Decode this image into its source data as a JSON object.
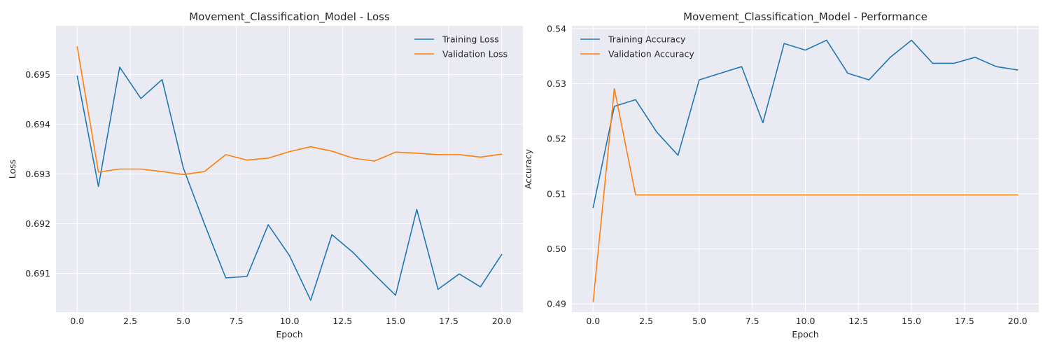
{
  "chart_data": [
    {
      "type": "line",
      "title": "Movement_Classification_Model - Loss",
      "xlabel": "Epoch",
      "ylabel": "Loss",
      "xlim": [
        -1,
        21
      ],
      "ylim": [
        0.69022,
        0.69598
      ],
      "xticks": [
        0,
        2.5,
        5,
        7.5,
        10,
        12.5,
        15,
        17.5,
        20
      ],
      "xtick_labels": [
        "0.0",
        "2.5",
        "5.0",
        "7.5",
        "10.0",
        "12.5",
        "15.0",
        "17.5",
        "20.0"
      ],
      "yticks": [
        0.691,
        0.692,
        0.693,
        0.694,
        0.695
      ],
      "ytick_labels": [
        "0.691",
        "0.692",
        "0.693",
        "0.694",
        "0.695"
      ],
      "grid": true,
      "legend": "upper right",
      "x": [
        0,
        1,
        2,
        3,
        4,
        5,
        6,
        7,
        8,
        9,
        10,
        11,
        12,
        13,
        14,
        15,
        16,
        17,
        18,
        19,
        20
      ],
      "series": [
        {
          "name": "Training Loss",
          "color": "#1f77b4",
          "values": [
            0.69497,
            0.69275,
            0.69515,
            0.69452,
            0.6949,
            0.69312,
            0.69199,
            0.69091,
            0.69094,
            0.69198,
            0.69136,
            0.69046,
            0.69178,
            0.69142,
            0.69098,
            0.69056,
            0.69229,
            0.69068,
            0.69099,
            0.69073,
            0.69138
          ]
        },
        {
          "name": "Validation Loss",
          "color": "#ff7f0e",
          "values": [
            0.69556,
            0.69304,
            0.6931,
            0.6931,
            0.69305,
            0.69299,
            0.69305,
            0.69339,
            0.69328,
            0.69332,
            0.69345,
            0.69355,
            0.69346,
            0.69332,
            0.69326,
            0.69344,
            0.69342,
            0.69339,
            0.69339,
            0.69334,
            0.6934
          ]
        }
      ]
    },
    {
      "type": "line",
      "title": "Movement_Classification_Model - Performance",
      "xlabel": "Epoch",
      "ylabel": "Accuracy",
      "xlim": [
        -1,
        21
      ],
      "ylim": [
        0.4885,
        0.5405
      ],
      "xticks": [
        0,
        2.5,
        5,
        7.5,
        10,
        12.5,
        15,
        17.5,
        20
      ],
      "xtick_labels": [
        "0.0",
        "2.5",
        "5.0",
        "7.5",
        "10.0",
        "12.5",
        "15.0",
        "17.5",
        "20.0"
      ],
      "yticks": [
        0.49,
        0.5,
        0.51,
        0.52,
        0.53,
        0.54
      ],
      "ytick_labels": [
        "0.49",
        "0.50",
        "0.51",
        "0.52",
        "0.53",
        "0.54"
      ],
      "grid": true,
      "legend": "upper left",
      "x": [
        0,
        1,
        2,
        3,
        4,
        5,
        6,
        7,
        8,
        9,
        10,
        11,
        12,
        13,
        14,
        15,
        16,
        17,
        18,
        19,
        20
      ],
      "series": [
        {
          "name": "Training Accuracy",
          "color": "#1f77b4",
          "values": [
            0.5075,
            0.5259,
            0.5271,
            0.5212,
            0.517,
            0.5307,
            0.5319,
            0.5331,
            0.5229,
            0.5373,
            0.5361,
            0.5379,
            0.5319,
            0.5307,
            0.5348,
            0.5379,
            0.5337,
            0.5337,
            0.5348,
            0.5331,
            0.5325
          ]
        },
        {
          "name": "Validation Accuracy",
          "color": "#ff7f0e",
          "values": [
            0.4904,
            0.5291,
            0.5098,
            0.5098,
            0.5098,
            0.5098,
            0.5098,
            0.5098,
            0.5098,
            0.5098,
            0.5098,
            0.5098,
            0.5098,
            0.5098,
            0.5098,
            0.5098,
            0.5098,
            0.5098,
            0.5098,
            0.5098,
            0.5098
          ]
        }
      ]
    }
  ]
}
